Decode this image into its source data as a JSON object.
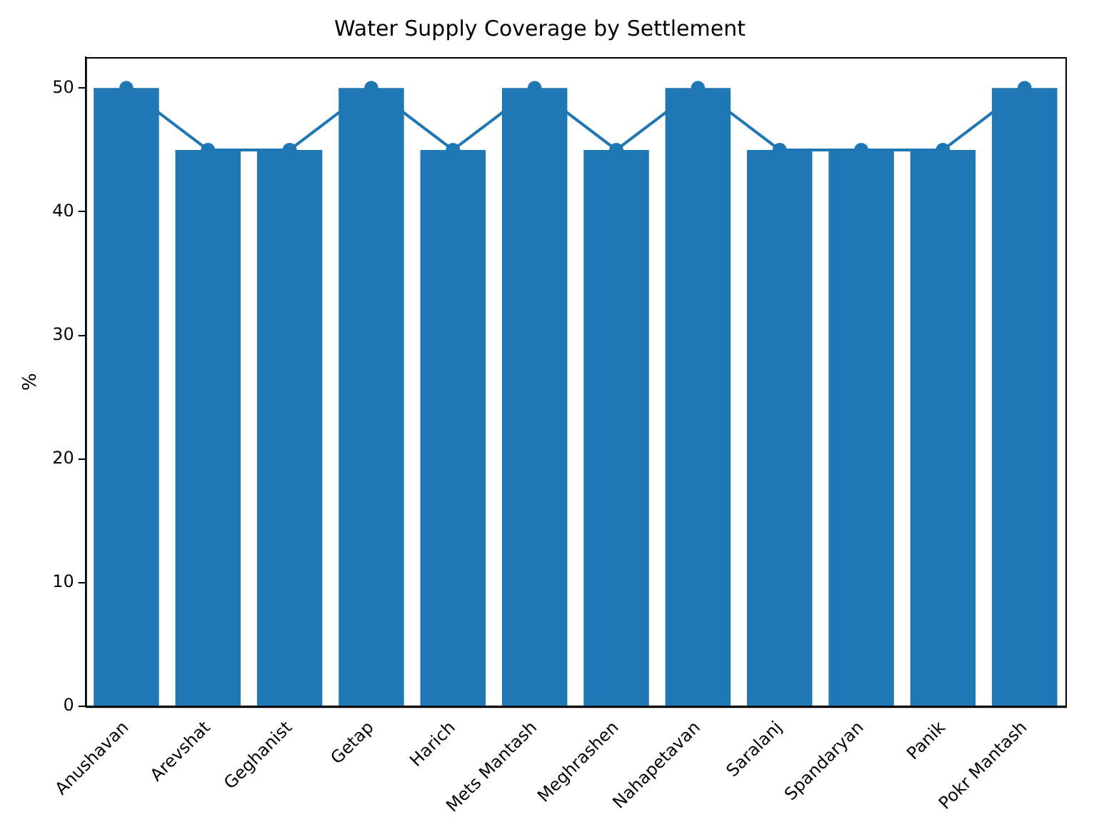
{
  "chart_data": {
    "type": "bar",
    "title": "Water Supply Coverage by Settlement",
    "ylabel": "%",
    "categories": [
      "Anushavan",
      "Arevshat",
      "Geghanist",
      "Getap",
      "Harich",
      "Mets Mantash",
      "Meghrashen",
      "Nahapetavan",
      "Saralanj",
      "Spandaryan",
      "Panik",
      "Pokr Mantash"
    ],
    "series": [
      {
        "color": "#1f77b4",
        "values": [
          50,
          45,
          45,
          50,
          45,
          50,
          45,
          50,
          45,
          45,
          45,
          50
        ]
      },
      {
        "type": "line",
        "color": "#1f77b4",
        "marker": "circle",
        "values": [
          50,
          45,
          45,
          50,
          45,
          50,
          45,
          50,
          45,
          45,
          45,
          50
        ]
      }
    ],
    "ylim": [
      0,
      52.5
    ],
    "yticks": [
      0,
      10,
      20,
      30,
      40,
      50
    ],
    "grid": false,
    "legend": false
  }
}
